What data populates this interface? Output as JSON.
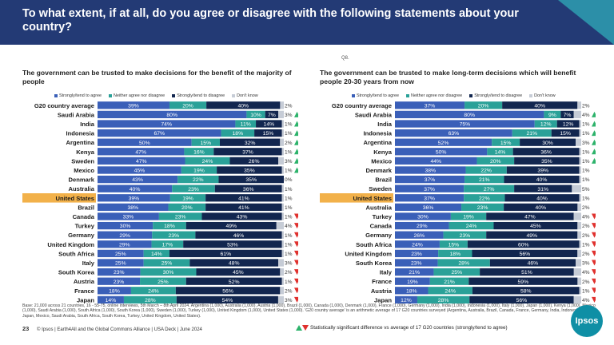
{
  "page": {
    "title": "To what extent, if at all, do you agree or disagree with the following statements about your country?",
    "question_ref": "Q8.",
    "footnote": "Base: 21,000 across 21 countries, 16 - 55-75, online interviews, 5th March – 8th April 2024. Argentina (1,000), Australia (1,000), Austria (1,000), Brazil (1,000), Canada (1,000), Denmark (1,000), France (1,000), Germany (1,000), India (1,000), Indonesia (1,000), Italy (1,000), Japan (1,000), Kenya (1,000), Mexico (1,000), Saudi Arabia (1,000), South Africa (1,000), South Korea (1,000), Sweden (1,000), Turkey (1,000), United Kingdom (1,000), United States (1,000). 'G20 country average' is an arithmetic average of 17 G20 countries surveyed (Argentina, Australia, Brazil, Canada, France, Germany, India, Indonesia, Italy, Japan, Mexico, Saudi Arabia, South Africa, South Korea, Turkey, United Kingdom, United States).",
    "page_number": "23",
    "copyright": "© Ipsos | Earth4All and the Global Commons Alliance | USA Deck | June 2024",
    "significance_note": "Statistically significant difference vs average of 17 G20 countries (strongly/tend to agree)",
    "logo_text": "Ipsos",
    "colors": {
      "header": "#233a75",
      "strongly_agree": "#3a5fb8",
      "neither": "#2aa198",
      "strongly_disagree": "#12264f",
      "dont_know": "#c6ccd6",
      "highlight": "#f2b14a",
      "up": "#2db36b",
      "down": "#e0312e"
    }
  },
  "legend": {
    "agree": "Strongly/tend to agree",
    "neither": "Neither agree nor disagree",
    "disagree": "Strongly/tend to disagree",
    "dk": "Don't know"
  },
  "chart_data": [
    {
      "type": "bar",
      "stacked": true,
      "orientation": "horizontal",
      "title": "The government can be trusted to make decisions for the benefit of the majority of people",
      "highlight": "United States",
      "series_names": [
        "Strongly/tend to agree",
        "Neither agree nor disagree",
        "Strongly/tend to disagree",
        "Don't know"
      ],
      "rows": [
        {
          "country": "G20 country average",
          "values": [
            39,
            20,
            40,
            2
          ],
          "sig": ""
        },
        {
          "country": "Saudi Arabia",
          "values": [
            80,
            10,
            7,
            3
          ],
          "sig": "up"
        },
        {
          "country": "India",
          "values": [
            74,
            11,
            14,
            1
          ],
          "sig": "up"
        },
        {
          "country": "Indonesia",
          "values": [
            67,
            18,
            15,
            1
          ],
          "sig": "up"
        },
        {
          "country": "Argentina",
          "values": [
            50,
            15,
            32,
            2
          ],
          "sig": "up"
        },
        {
          "country": "Kenya",
          "values": [
            47,
            16,
            37,
            1
          ],
          "sig": "up"
        },
        {
          "country": "Sweden",
          "values": [
            47,
            24,
            26,
            3
          ],
          "sig": "up"
        },
        {
          "country": "Mexico",
          "values": [
            45,
            19,
            35,
            1
          ],
          "sig": "up"
        },
        {
          "country": "Denmark",
          "values": [
            43,
            22,
            35,
            0
          ],
          "sig": ""
        },
        {
          "country": "Australia",
          "values": [
            40,
            23,
            36,
            1
          ],
          "sig": ""
        },
        {
          "country": "United States",
          "values": [
            39,
            19,
            41,
            1
          ],
          "sig": ""
        },
        {
          "country": "Brazil",
          "values": [
            38,
            20,
            41,
            1
          ],
          "sig": ""
        },
        {
          "country": "Canada",
          "values": [
            33,
            23,
            43,
            1
          ],
          "sig": "down"
        },
        {
          "country": "Turkey",
          "values": [
            30,
            18,
            49,
            4
          ],
          "sig": "down"
        },
        {
          "country": "Germany",
          "values": [
            29,
            23,
            46,
            1
          ],
          "sig": "down"
        },
        {
          "country": "United Kingdom",
          "values": [
            29,
            17,
            53,
            1
          ],
          "sig": "down"
        },
        {
          "country": "South Africa",
          "values": [
            25,
            14,
            61,
            1
          ],
          "sig": "down"
        },
        {
          "country": "Italy",
          "values": [
            25,
            25,
            48,
            3
          ],
          "sig": "down"
        },
        {
          "country": "South Korea",
          "values": [
            23,
            30,
            45,
            2
          ],
          "sig": "down"
        },
        {
          "country": "Austria",
          "values": [
            23,
            25,
            52,
            1
          ],
          "sig": "down"
        },
        {
          "country": "France",
          "values": [
            18,
            24,
            56,
            2
          ],
          "sig": "down"
        },
        {
          "country": "Japan",
          "values": [
            14,
            28,
            54,
            3
          ],
          "sig": "down"
        }
      ]
    },
    {
      "type": "bar",
      "stacked": true,
      "orientation": "horizontal",
      "title": "The government can be trusted to make long-term decisions which will benefit people 20-30 years from now",
      "highlight": "United States",
      "series_names": [
        "Strongly/tend to agree",
        "Neither agree nor disagree",
        "Strongly/tend to disagree",
        "Don't know"
      ],
      "rows": [
        {
          "country": "G20 country average",
          "values": [
            37,
            20,
            40,
            2
          ],
          "sig": ""
        },
        {
          "country": "Saudi Arabia",
          "values": [
            80,
            9,
            7,
            4
          ],
          "sig": "up"
        },
        {
          "country": "India",
          "values": [
            75,
            12,
            12,
            1
          ],
          "sig": "up"
        },
        {
          "country": "Indonesia",
          "values": [
            63,
            21,
            15,
            1
          ],
          "sig": "up"
        },
        {
          "country": "Argentina",
          "values": [
            52,
            15,
            30,
            3
          ],
          "sig": "up"
        },
        {
          "country": "Kenya",
          "values": [
            50,
            14,
            36,
            1
          ],
          "sig": "up"
        },
        {
          "country": "Mexico",
          "values": [
            44,
            20,
            35,
            1
          ],
          "sig": "up"
        },
        {
          "country": "Denmark",
          "values": [
            38,
            22,
            39,
            1
          ],
          "sig": ""
        },
        {
          "country": "Brazil",
          "values": [
            37,
            21,
            40,
            1
          ],
          "sig": ""
        },
        {
          "country": "Sweden",
          "values": [
            37,
            27,
            31,
            5
          ],
          "sig": ""
        },
        {
          "country": "United States",
          "values": [
            37,
            22,
            40,
            1
          ],
          "sig": ""
        },
        {
          "country": "Australia",
          "values": [
            36,
            23,
            40,
            2
          ],
          "sig": ""
        },
        {
          "country": "Turkey",
          "values": [
            30,
            19,
            47,
            4
          ],
          "sig": "down"
        },
        {
          "country": "Canada",
          "values": [
            29,
            24,
            45,
            2
          ],
          "sig": "down"
        },
        {
          "country": "Germany",
          "values": [
            26,
            23,
            49,
            2
          ],
          "sig": "down"
        },
        {
          "country": "South Africa",
          "values": [
            24,
            15,
            60,
            1
          ],
          "sig": "down"
        },
        {
          "country": "United Kingdom",
          "values": [
            23,
            18,
            56,
            2
          ],
          "sig": "down"
        },
        {
          "country": "South Korea",
          "values": [
            23,
            28,
            46,
            3
          ],
          "sig": "down"
        },
        {
          "country": "Italy",
          "values": [
            21,
            25,
            51,
            4
          ],
          "sig": "down"
        },
        {
          "country": "France",
          "values": [
            19,
            21,
            59,
            2
          ],
          "sig": "down"
        },
        {
          "country": "Austria",
          "values": [
            18,
            24,
            58,
            1
          ],
          "sig": "down"
        },
        {
          "country": "Japan",
          "values": [
            12,
            28,
            56,
            4
          ],
          "sig": "down"
        }
      ]
    }
  ]
}
